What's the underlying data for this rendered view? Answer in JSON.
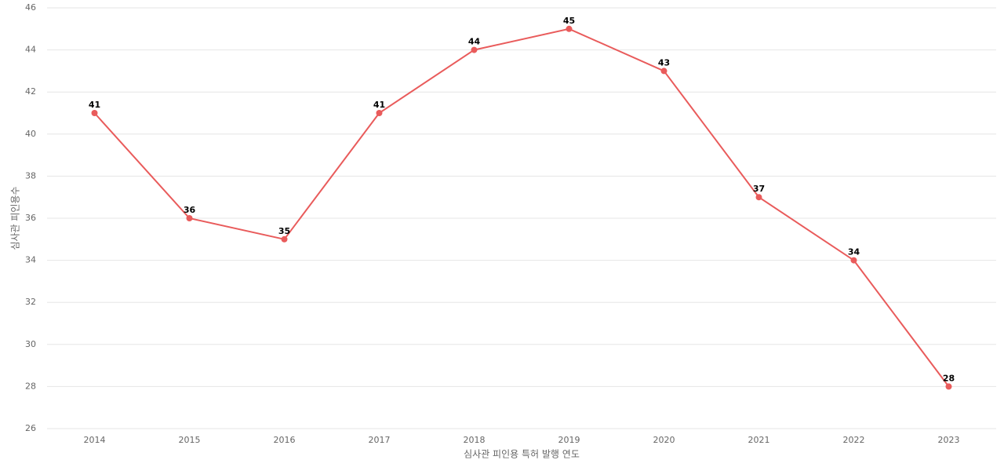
{
  "chart_data": {
    "type": "line",
    "x_label": "심사관 피인용 특허 발행 연도",
    "y_label": "심사관 피인용수",
    "categories": [
      "2014",
      "2015",
      "2016",
      "2017",
      "2018",
      "2019",
      "2020",
      "2021",
      "2022",
      "2023"
    ],
    "values": [
      41,
      36,
      35,
      41,
      44,
      45,
      43,
      37,
      34,
      28
    ],
    "color": "#e95b5b",
    "ylim": [
      26,
      46
    ],
    "yticks": [
      26,
      28,
      30,
      32,
      34,
      36,
      38,
      40,
      42,
      44,
      46
    ],
    "grid": true
  }
}
